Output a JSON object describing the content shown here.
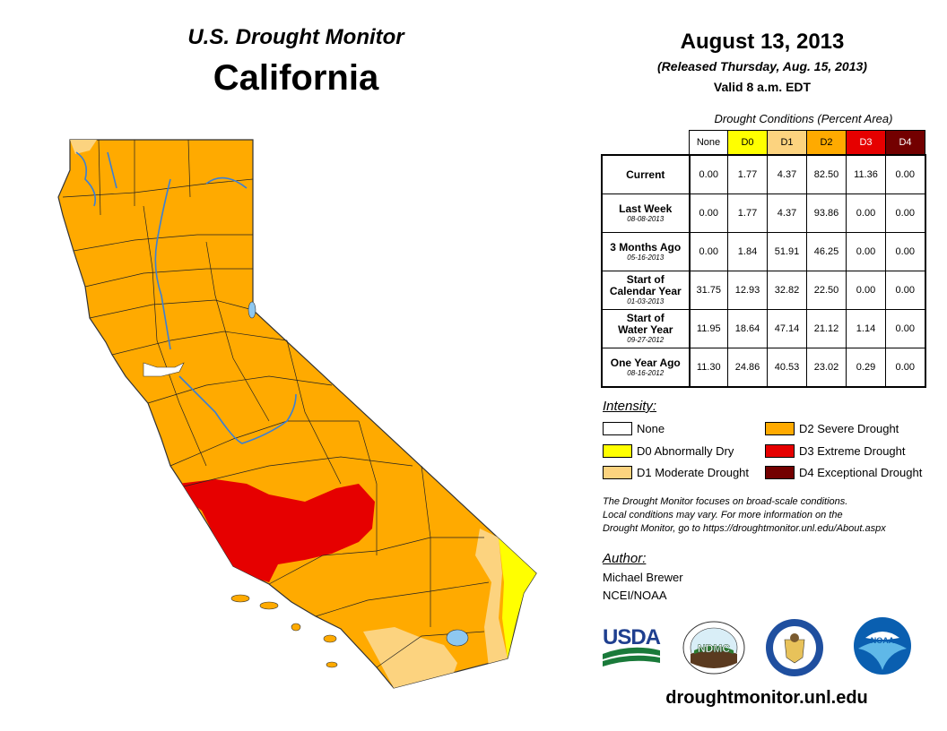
{
  "header": {
    "monitor_title": "U.S. Drought Monitor",
    "state_title": "California",
    "date": "August 13, 2013",
    "released": "(Released Thursday, Aug. 15, 2013)",
    "valid": "Valid 8 a.m. EDT"
  },
  "table": {
    "caption": "Drought Conditions (Percent Area)",
    "columns": [
      {
        "label": "None",
        "color": "#ffffff",
        "text_color": "#000000"
      },
      {
        "label": "D0",
        "color": "#ffff00",
        "text_color": "#000000"
      },
      {
        "label": "D1",
        "color": "#fcd37f",
        "text_color": "#000000"
      },
      {
        "label": "D2",
        "color": "#ffaa00",
        "text_color": "#000000"
      },
      {
        "label": "D3",
        "color": "#e60000",
        "text_color": "#ffffff"
      },
      {
        "label": "D4",
        "color": "#730000",
        "text_color": "#ffffff"
      }
    ],
    "rows": [
      {
        "label": "Current",
        "label2": "",
        "date": "",
        "values": [
          "0.00",
          "1.77",
          "4.37",
          "82.50",
          "11.36",
          "0.00"
        ]
      },
      {
        "label": "Last Week",
        "label2": "",
        "date": "08-08-2013",
        "values": [
          "0.00",
          "1.77",
          "4.37",
          "93.86",
          "0.00",
          "0.00"
        ]
      },
      {
        "label": "3 Months Ago",
        "label2": "",
        "date": "05-16-2013",
        "values": [
          "0.00",
          "1.84",
          "51.91",
          "46.25",
          "0.00",
          "0.00"
        ]
      },
      {
        "label": "Start of",
        "label2": "Calendar Year",
        "date": "01-03-2013",
        "values": [
          "31.75",
          "12.93",
          "32.82",
          "22.50",
          "0.00",
          "0.00"
        ]
      },
      {
        "label": "Start of",
        "label2": "Water Year",
        "date": "09-27-2012",
        "values": [
          "11.95",
          "18.64",
          "47.14",
          "21.12",
          "1.14",
          "0.00"
        ]
      },
      {
        "label": "One Year Ago",
        "label2": "",
        "date": "08-16-2012",
        "values": [
          "11.30",
          "24.86",
          "40.53",
          "23.02",
          "0.29",
          "0.00"
        ]
      }
    ]
  },
  "legend": {
    "title": "Intensity:",
    "items": [
      {
        "label": "None",
        "color": "#ffffff"
      },
      {
        "label": "D0 Abnormally Dry",
        "color": "#ffff00"
      },
      {
        "label": "D1 Moderate Drought",
        "color": "#fcd37f"
      },
      {
        "label": "D2 Severe Drought",
        "color": "#ffaa00"
      },
      {
        "label": "D3 Extreme Drought",
        "color": "#e60000"
      },
      {
        "label": "D4 Exceptional Drought",
        "color": "#730000"
      }
    ]
  },
  "note": {
    "line1": "The Drought Monitor focuses on broad-scale conditions.",
    "line2": "Local conditions may vary. For more information on the",
    "line3": "Drought Monitor, go to https://droughtmonitor.unl.edu/About.aspx"
  },
  "author": {
    "label": "Author:",
    "name": "Michael Brewer",
    "org": "NCEI/NOAA"
  },
  "logos": {
    "usda": "USDA",
    "ndmc": "NDMC",
    "noaa": "NOAA"
  },
  "footer": {
    "url": "droughtmonitor.unl.edu"
  },
  "map": {
    "colors": {
      "d0": "#ffff00",
      "d1": "#fcd37f",
      "d2": "#ffaa00",
      "d3": "#e60000",
      "water": "#8ec8f0",
      "border": "#333333",
      "river": "#3a7fd5"
    }
  }
}
